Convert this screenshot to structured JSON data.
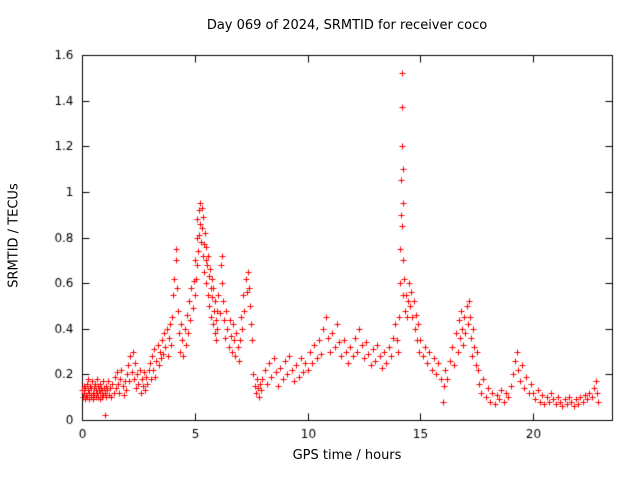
{
  "chart_data": {
    "type": "scatter",
    "title": "Day 069 of 2024, SRMTID for receiver coco",
    "xlabel": "GPS time / hours",
    "ylabel": "SRMTID / TECUs",
    "xlim": [
      0,
      23.5
    ],
    "ylim": [
      0,
      1.6
    ],
    "xticks": [
      0,
      5,
      10,
      15,
      20
    ],
    "xtick_labels": [
      "0",
      "5",
      "10",
      "15",
      "20"
    ],
    "yticks": [
      0,
      0.2,
      0.4,
      0.6,
      0.8,
      1.0,
      1.2,
      1.4,
      1.6
    ],
    "ytick_labels": [
      "0",
      "0.2",
      "0.4",
      "0.6",
      "0.8",
      "1",
      "1.2",
      "1.4",
      "1.6"
    ],
    "grid": false,
    "legend": null,
    "marker": "plus",
    "marker_color": "#ff0000",
    "axis_color": "#000000",
    "points": [
      [
        0.02,
        0.13
      ],
      [
        0.05,
        0.1
      ],
      [
        0.08,
        0.15
      ],
      [
        0.1,
        0.12
      ],
      [
        0.13,
        0.09
      ],
      [
        0.15,
        0.14
      ],
      [
        0.18,
        0.11
      ],
      [
        0.2,
        0.16
      ],
      [
        0.22,
        0.1
      ],
      [
        0.25,
        0.13
      ],
      [
        0.28,
        0.18
      ],
      [
        0.3,
        0.12
      ],
      [
        0.33,
        0.09
      ],
      [
        0.35,
        0.15
      ],
      [
        0.38,
        0.11
      ],
      [
        0.4,
        0.14
      ],
      [
        0.42,
        0.1
      ],
      [
        0.45,
        0.17
      ],
      [
        0.48,
        0.12
      ],
      [
        0.5,
        0.09
      ],
      [
        0.52,
        0.14
      ],
      [
        0.55,
        0.11
      ],
      [
        0.58,
        0.16
      ],
      [
        0.6,
        0.1
      ],
      [
        0.62,
        0.13
      ],
      [
        0.65,
        0.18
      ],
      [
        0.68,
        0.12
      ],
      [
        0.7,
        0.15
      ],
      [
        0.72,
        0.1
      ],
      [
        0.75,
        0.13
      ],
      [
        0.78,
        0.09
      ],
      [
        0.8,
        0.16
      ],
      [
        0.82,
        0.12
      ],
      [
        0.85,
        0.14
      ],
      [
        0.88,
        0.1
      ],
      [
        0.9,
        0.13
      ],
      [
        0.92,
        0.17
      ],
      [
        0.95,
        0.11
      ],
      [
        0.98,
        0.14
      ],
      [
        1.0,
        0.02
      ],
      [
        1.02,
        0.12
      ],
      [
        1.05,
        0.15
      ],
      [
        1.08,
        0.1
      ],
      [
        1.1,
        0.13
      ],
      [
        1.15,
        0.17
      ],
      [
        1.2,
        0.11
      ],
      [
        1.25,
        0.14
      ],
      [
        1.3,
        0.1
      ],
      [
        1.35,
        0.16
      ],
      [
        1.4,
        0.12
      ],
      [
        1.45,
        0.19
      ],
      [
        1.5,
        0.14
      ],
      [
        1.55,
        0.21
      ],
      [
        1.6,
        0.16
      ],
      [
        1.65,
        0.12
      ],
      [
        1.7,
        0.18
      ],
      [
        1.75,
        0.22
      ],
      [
        1.8,
        0.15
      ],
      [
        1.85,
        0.11
      ],
      [
        1.9,
        0.17
      ],
      [
        1.95,
        0.13
      ],
      [
        2.0,
        0.2
      ],
      [
        2.05,
        0.24
      ],
      [
        2.1,
        0.17
      ],
      [
        2.15,
        0.28
      ],
      [
        2.2,
        0.21
      ],
      [
        2.25,
        0.3
      ],
      [
        2.3,
        0.18
      ],
      [
        2.35,
        0.25
      ],
      [
        2.4,
        0.14
      ],
      [
        2.45,
        0.2
      ],
      [
        2.5,
        0.16
      ],
      [
        2.55,
        0.22
      ],
      [
        2.6,
        0.12
      ],
      [
        2.65,
        0.18
      ],
      [
        2.7,
        0.15
      ],
      [
        2.75,
        0.21
      ],
      [
        2.8,
        0.13
      ],
      [
        2.85,
        0.19
      ],
      [
        2.9,
        0.16
      ],
      [
        2.95,
        0.22
      ],
      [
        3.0,
        0.25
      ],
      [
        3.05,
        0.18
      ],
      [
        3.1,
        0.28
      ],
      [
        3.15,
        0.22
      ],
      [
        3.2,
        0.31
      ],
      [
        3.25,
        0.19
      ],
      [
        3.3,
        0.26
      ],
      [
        3.35,
        0.33
      ],
      [
        3.4,
        0.24
      ],
      [
        3.45,
        0.3
      ],
      [
        3.5,
        0.27
      ],
      [
        3.55,
        0.35
      ],
      [
        3.6,
        0.29
      ],
      [
        3.65,
        0.38
      ],
      [
        3.7,
        0.32
      ],
      [
        3.75,
        0.4
      ],
      [
        3.8,
        0.28
      ],
      [
        3.85,
        0.36
      ],
      [
        3.9,
        0.42
      ],
      [
        3.95,
        0.33
      ],
      [
        4.0,
        0.45
      ],
      [
        4.05,
        0.55
      ],
      [
        4.1,
        0.62
      ],
      [
        4.15,
        0.7
      ],
      [
        4.18,
        0.75
      ],
      [
        4.2,
        0.58
      ],
      [
        4.25,
        0.48
      ],
      [
        4.3,
        0.38
      ],
      [
        4.35,
        0.3
      ],
      [
        4.4,
        0.42
      ],
      [
        4.45,
        0.35
      ],
      [
        4.5,
        0.28
      ],
      [
        4.55,
        0.4
      ],
      [
        4.6,
        0.33
      ],
      [
        4.65,
        0.46
      ],
      [
        4.7,
        0.38
      ],
      [
        4.75,
        0.52
      ],
      [
        4.8,
        0.44
      ],
      [
        4.85,
        0.58
      ],
      [
        4.9,
        0.49
      ],
      [
        4.95,
        0.61
      ],
      [
        5.0,
        0.55
      ],
      [
        5.02,
        0.7
      ],
      [
        5.05,
        0.62
      ],
      [
        5.08,
        0.8
      ],
      [
        5.1,
        0.68
      ],
      [
        5.12,
        0.88
      ],
      [
        5.15,
        0.74
      ],
      [
        5.18,
        0.92
      ],
      [
        5.2,
        0.81
      ],
      [
        5.22,
        0.95
      ],
      [
        5.25,
        0.86
      ],
      [
        5.28,
        0.78
      ],
      [
        5.3,
        0.93
      ],
      [
        5.32,
        0.84
      ],
      [
        5.35,
        0.72
      ],
      [
        5.38,
        0.89
      ],
      [
        5.4,
        0.77
      ],
      [
        5.42,
        0.65
      ],
      [
        5.45,
        0.82
      ],
      [
        5.48,
        0.7
      ],
      [
        5.5,
        0.6
      ],
      [
        5.52,
        0.76
      ],
      [
        5.55,
        0.68
      ],
      [
        5.58,
        0.55
      ],
      [
        5.6,
        0.72
      ],
      [
        5.62,
        0.63
      ],
      [
        5.65,
        0.5
      ],
      [
        5.68,
        0.66
      ],
      [
        5.7,
        0.58
      ],
      [
        5.72,
        0.45
      ],
      [
        5.75,
        0.62
      ],
      [
        5.78,
        0.54
      ],
      [
        5.8,
        0.42
      ],
      [
        5.82,
        0.58
      ],
      [
        5.85,
        0.48
      ],
      [
        5.88,
        0.38
      ],
      [
        5.9,
        0.52
      ],
      [
        5.92,
        0.44
      ],
      [
        5.95,
        0.35
      ],
      [
        5.98,
        0.48
      ],
      [
        6.0,
        0.4
      ],
      [
        6.05,
        0.55
      ],
      [
        6.1,
        0.47
      ],
      [
        6.15,
        0.68
      ],
      [
        6.2,
        0.72
      ],
      [
        6.22,
        0.6
      ],
      [
        6.25,
        0.52
      ],
      [
        6.3,
        0.44
      ],
      [
        6.35,
        0.36
      ],
      [
        6.4,
        0.48
      ],
      [
        6.45,
        0.4
      ],
      [
        6.5,
        0.32
      ],
      [
        6.55,
        0.44
      ],
      [
        6.6,
        0.37
      ],
      [
        6.65,
        0.3
      ],
      [
        6.7,
        0.42
      ],
      [
        6.75,
        0.35
      ],
      [
        6.8,
        0.28
      ],
      [
        6.85,
        0.38
      ],
      [
        6.9,
        0.32
      ],
      [
        6.95,
        0.26
      ],
      [
        7.0,
        0.35
      ],
      [
        7.05,
        0.45
      ],
      [
        7.1,
        0.4
      ],
      [
        7.15,
        0.55
      ],
      [
        7.2,
        0.48
      ],
      [
        7.25,
        0.62
      ],
      [
        7.3,
        0.56
      ],
      [
        7.35,
        0.65
      ],
      [
        7.4,
        0.58
      ],
      [
        7.45,
        0.5
      ],
      [
        7.5,
        0.42
      ],
      [
        7.55,
        0.35
      ],
      [
        7.6,
        0.2
      ],
      [
        7.65,
        0.15
      ],
      [
        7.7,
        0.12
      ],
      [
        7.75,
        0.18
      ],
      [
        7.8,
        0.14
      ],
      [
        7.85,
        0.1
      ],
      [
        7.9,
        0.16
      ],
      [
        7.95,
        0.13
      ],
      [
        8.0,
        0.18
      ],
      [
        8.1,
        0.22
      ],
      [
        8.2,
        0.16
      ],
      [
        8.3,
        0.25
      ],
      [
        8.4,
        0.19
      ],
      [
        8.5,
        0.27
      ],
      [
        8.6,
        0.21
      ],
      [
        8.7,
        0.15
      ],
      [
        8.8,
        0.23
      ],
      [
        8.9,
        0.18
      ],
      [
        9.0,
        0.26
      ],
      [
        9.1,
        0.2
      ],
      [
        9.2,
        0.28
      ],
      [
        9.3,
        0.22
      ],
      [
        9.4,
        0.17
      ],
      [
        9.5,
        0.24
      ],
      [
        9.6,
        0.19
      ],
      [
        9.7,
        0.27
      ],
      [
        9.8,
        0.21
      ],
      [
        9.9,
        0.25
      ],
      [
        10.0,
        0.22
      ],
      [
        10.1,
        0.3
      ],
      [
        10.2,
        0.25
      ],
      [
        10.3,
        0.33
      ],
      [
        10.4,
        0.27
      ],
      [
        10.5,
        0.35
      ],
      [
        10.6,
        0.29
      ],
      [
        10.7,
        0.4
      ],
      [
        10.8,
        0.45
      ],
      [
        10.9,
        0.36
      ],
      [
        11.0,
        0.3
      ],
      [
        11.1,
        0.38
      ],
      [
        11.2,
        0.32
      ],
      [
        11.3,
        0.42
      ],
      [
        11.4,
        0.34
      ],
      [
        11.5,
        0.28
      ],
      [
        11.6,
        0.35
      ],
      [
        11.7,
        0.3
      ],
      [
        11.8,
        0.25
      ],
      [
        11.9,
        0.32
      ],
      [
        12.0,
        0.28
      ],
      [
        12.1,
        0.36
      ],
      [
        12.2,
        0.3
      ],
      [
        12.3,
        0.4
      ],
      [
        12.4,
        0.33
      ],
      [
        12.5,
        0.27
      ],
      [
        12.6,
        0.34
      ],
      [
        12.7,
        0.29
      ],
      [
        12.8,
        0.24
      ],
      [
        12.9,
        0.31
      ],
      [
        13.0,
        0.26
      ],
      [
        13.1,
        0.33
      ],
      [
        13.2,
        0.28
      ],
      [
        13.3,
        0.23
      ],
      [
        13.4,
        0.3
      ],
      [
        13.5,
        0.25
      ],
      [
        13.6,
        0.32
      ],
      [
        13.7,
        0.28
      ],
      [
        13.8,
        0.36
      ],
      [
        13.9,
        0.42
      ],
      [
        13.95,
        0.35
      ],
      [
        14.0,
        0.3
      ],
      [
        14.05,
        0.45
      ],
      [
        14.1,
        0.6
      ],
      [
        14.12,
        0.75
      ],
      [
        14.15,
        0.9
      ],
      [
        14.15,
        1.05
      ],
      [
        14.18,
        1.2
      ],
      [
        14.18,
        1.37
      ],
      [
        14.2,
        1.52
      ],
      [
        14.2,
        0.85
      ],
      [
        14.22,
        0.95
      ],
      [
        14.22,
        1.1
      ],
      [
        14.25,
        0.7
      ],
      [
        14.25,
        0.55
      ],
      [
        14.28,
        0.62
      ],
      [
        14.3,
        0.48
      ],
      [
        14.35,
        0.55
      ],
      [
        14.4,
        0.45
      ],
      [
        14.45,
        0.52
      ],
      [
        14.5,
        0.6
      ],
      [
        14.55,
        0.5
      ],
      [
        14.6,
        0.56
      ],
      [
        14.65,
        0.45
      ],
      [
        14.7,
        0.52
      ],
      [
        14.75,
        0.4
      ],
      [
        14.8,
        0.46
      ],
      [
        14.85,
        0.35
      ],
      [
        14.9,
        0.42
      ],
      [
        14.95,
        0.3
      ],
      [
        15.0,
        0.35
      ],
      [
        15.1,
        0.28
      ],
      [
        15.2,
        0.32
      ],
      [
        15.3,
        0.25
      ],
      [
        15.4,
        0.3
      ],
      [
        15.5,
        0.22
      ],
      [
        15.6,
        0.27
      ],
      [
        15.7,
        0.2
      ],
      [
        15.8,
        0.25
      ],
      [
        15.9,
        0.18
      ],
      [
        16.0,
        0.08
      ],
      [
        16.05,
        0.15
      ],
      [
        16.1,
        0.22
      ],
      [
        16.2,
        0.18
      ],
      [
        16.3,
        0.26
      ],
      [
        16.4,
        0.32
      ],
      [
        16.5,
        0.24
      ],
      [
        16.6,
        0.38
      ],
      [
        16.65,
        0.3
      ],
      [
        16.7,
        0.44
      ],
      [
        16.75,
        0.36
      ],
      [
        16.8,
        0.48
      ],
      [
        16.85,
        0.4
      ],
      [
        16.9,
        0.33
      ],
      [
        16.95,
        0.45
      ],
      [
        17.0,
        0.38
      ],
      [
        17.05,
        0.5
      ],
      [
        17.1,
        0.42
      ],
      [
        17.15,
        0.52
      ],
      [
        17.2,
        0.45
      ],
      [
        17.25,
        0.36
      ],
      [
        17.3,
        0.28
      ],
      [
        17.35,
        0.4
      ],
      [
        17.4,
        0.32
      ],
      [
        17.45,
        0.24
      ],
      [
        17.5,
        0.3
      ],
      [
        17.55,
        0.22
      ],
      [
        17.6,
        0.16
      ],
      [
        17.7,
        0.12
      ],
      [
        17.8,
        0.18
      ],
      [
        17.9,
        0.1
      ],
      [
        18.0,
        0.14
      ],
      [
        18.1,
        0.08
      ],
      [
        18.2,
        0.12
      ],
      [
        18.3,
        0.07
      ],
      [
        18.4,
        0.11
      ],
      [
        18.5,
        0.09
      ],
      [
        18.6,
        0.13
      ],
      [
        18.7,
        0.08
      ],
      [
        18.8,
        0.12
      ],
      [
        18.9,
        0.1
      ],
      [
        19.0,
        0.15
      ],
      [
        19.1,
        0.2
      ],
      [
        19.2,
        0.26
      ],
      [
        19.3,
        0.3
      ],
      [
        19.35,
        0.22
      ],
      [
        19.4,
        0.17
      ],
      [
        19.5,
        0.24
      ],
      [
        19.6,
        0.14
      ],
      [
        19.7,
        0.19
      ],
      [
        19.8,
        0.12
      ],
      [
        19.9,
        0.16
      ],
      [
        20.0,
        0.12
      ],
      [
        20.1,
        0.09
      ],
      [
        20.2,
        0.13
      ],
      [
        20.3,
        0.08
      ],
      [
        20.4,
        0.11
      ],
      [
        20.5,
        0.07
      ],
      [
        20.6,
        0.1
      ],
      [
        20.7,
        0.08
      ],
      [
        20.8,
        0.12
      ],
      [
        20.9,
        0.09
      ],
      [
        21.0,
        0.07
      ],
      [
        21.1,
        0.1
      ],
      [
        21.2,
        0.08
      ],
      [
        21.3,
        0.06
      ],
      [
        21.4,
        0.09
      ],
      [
        21.5,
        0.07
      ],
      [
        21.6,
        0.1
      ],
      [
        21.7,
        0.08
      ],
      [
        21.8,
        0.06
      ],
      [
        21.9,
        0.09
      ],
      [
        22.0,
        0.07
      ],
      [
        22.1,
        0.1
      ],
      [
        22.2,
        0.08
      ],
      [
        22.3,
        0.11
      ],
      [
        22.4,
        0.09
      ],
      [
        22.5,
        0.12
      ],
      [
        22.6,
        0.1
      ],
      [
        22.7,
        0.14
      ],
      [
        22.8,
        0.17
      ],
      [
        22.85,
        0.12
      ],
      [
        22.9,
        0.08
      ]
    ]
  }
}
